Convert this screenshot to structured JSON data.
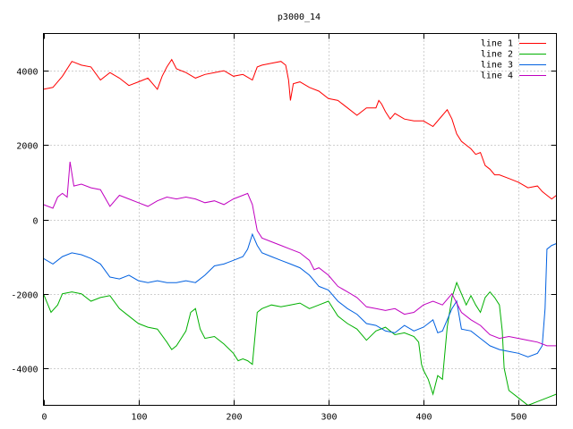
{
  "chart_data": {
    "type": "line",
    "title": "p3000_14",
    "xlabel": "",
    "ylabel": "",
    "xlim": [
      0,
      540
    ],
    "ylim": [
      -5000,
      5000
    ],
    "x_ticks": [
      0,
      100,
      200,
      300,
      400,
      500
    ],
    "y_ticks": [
      -4000,
      -2000,
      0,
      2000,
      4000
    ],
    "grid": true,
    "legend_position": "top-right",
    "series": [
      {
        "name": "line 1",
        "color": "#ff0000",
        "points": [
          [
            0,
            3500
          ],
          [
            10,
            3550
          ],
          [
            20,
            3850
          ],
          [
            30,
            4250
          ],
          [
            40,
            4150
          ],
          [
            50,
            4100
          ],
          [
            60,
            3750
          ],
          [
            70,
            3950
          ],
          [
            80,
            3800
          ],
          [
            90,
            3600
          ],
          [
            100,
            3700
          ],
          [
            110,
            3800
          ],
          [
            120,
            3500
          ],
          [
            125,
            3850
          ],
          [
            130,
            4100
          ],
          [
            135,
            4300
          ],
          [
            140,
            4050
          ],
          [
            150,
            3950
          ],
          [
            160,
            3800
          ],
          [
            170,
            3900
          ],
          [
            180,
            3950
          ],
          [
            190,
            4000
          ],
          [
            200,
            3850
          ],
          [
            210,
            3900
          ],
          [
            220,
            3750
          ],
          [
            225,
            4100
          ],
          [
            230,
            4150
          ],
          [
            240,
            4200
          ],
          [
            250,
            4250
          ],
          [
            255,
            4150
          ],
          [
            258,
            3750
          ],
          [
            260,
            3200
          ],
          [
            263,
            3650
          ],
          [
            270,
            3700
          ],
          [
            280,
            3550
          ],
          [
            290,
            3450
          ],
          [
            300,
            3250
          ],
          [
            310,
            3200
          ],
          [
            320,
            3000
          ],
          [
            330,
            2800
          ],
          [
            340,
            3000
          ],
          [
            350,
            3000
          ],
          [
            353,
            3200
          ],
          [
            356,
            3100
          ],
          [
            360,
            2900
          ],
          [
            365,
            2700
          ],
          [
            370,
            2850
          ],
          [
            380,
            2700
          ],
          [
            390,
            2650
          ],
          [
            400,
            2650
          ],
          [
            410,
            2500
          ],
          [
            420,
            2800
          ],
          [
            425,
            2950
          ],
          [
            430,
            2700
          ],
          [
            435,
            2300
          ],
          [
            440,
            2100
          ],
          [
            450,
            1900
          ],
          [
            455,
            1750
          ],
          [
            460,
            1800
          ],
          [
            465,
            1450
          ],
          [
            470,
            1350
          ],
          [
            475,
            1200
          ],
          [
            480,
            1200
          ],
          [
            490,
            1100
          ],
          [
            500,
            1000
          ],
          [
            510,
            850
          ],
          [
            520,
            900
          ],
          [
            525,
            750
          ],
          [
            530,
            650
          ],
          [
            535,
            550
          ],
          [
            540,
            650
          ]
        ]
      },
      {
        "name": "line 2",
        "color": "#00b000",
        "points": [
          [
            0,
            -2000
          ],
          [
            8,
            -2500
          ],
          [
            15,
            -2300
          ],
          [
            20,
            -2000
          ],
          [
            30,
            -1950
          ],
          [
            40,
            -2000
          ],
          [
            50,
            -2200
          ],
          [
            60,
            -2100
          ],
          [
            70,
            -2050
          ],
          [
            80,
            -2400
          ],
          [
            90,
            -2600
          ],
          [
            100,
            -2800
          ],
          [
            110,
            -2900
          ],
          [
            120,
            -2950
          ],
          [
            130,
            -3300
          ],
          [
            135,
            -3500
          ],
          [
            140,
            -3400
          ],
          [
            150,
            -3000
          ],
          [
            155,
            -2500
          ],
          [
            160,
            -2400
          ],
          [
            165,
            -2950
          ],
          [
            170,
            -3200
          ],
          [
            180,
            -3150
          ],
          [
            190,
            -3350
          ],
          [
            200,
            -3600
          ],
          [
            205,
            -3800
          ],
          [
            210,
            -3750
          ],
          [
            215,
            -3800
          ],
          [
            220,
            -3900
          ],
          [
            225,
            -2500
          ],
          [
            230,
            -2400
          ],
          [
            240,
            -2300
          ],
          [
            250,
            -2350
          ],
          [
            260,
            -2300
          ],
          [
            270,
            -2250
          ],
          [
            280,
            -2400
          ],
          [
            290,
            -2300
          ],
          [
            300,
            -2200
          ],
          [
            310,
            -2600
          ],
          [
            320,
            -2800
          ],
          [
            330,
            -2950
          ],
          [
            340,
            -3250
          ],
          [
            350,
            -3000
          ],
          [
            360,
            -2900
          ],
          [
            370,
            -3100
          ],
          [
            380,
            -3050
          ],
          [
            390,
            -3150
          ],
          [
            395,
            -3300
          ],
          [
            398,
            -3900
          ],
          [
            400,
            -4050
          ],
          [
            405,
            -4300
          ],
          [
            410,
            -4700
          ],
          [
            415,
            -4200
          ],
          [
            420,
            -4300
          ],
          [
            425,
            -2900
          ],
          [
            430,
            -2100
          ],
          [
            435,
            -1700
          ],
          [
            440,
            -2000
          ],
          [
            445,
            -2300
          ],
          [
            450,
            -2050
          ],
          [
            455,
            -2300
          ],
          [
            460,
            -2500
          ],
          [
            465,
            -2100
          ],
          [
            470,
            -1950
          ],
          [
            475,
            -2100
          ],
          [
            480,
            -2300
          ],
          [
            483,
            -3000
          ],
          [
            485,
            -4000
          ],
          [
            490,
            -4600
          ],
          [
            500,
            -4800
          ],
          [
            510,
            -5000
          ],
          [
            520,
            -4900
          ],
          [
            530,
            -4800
          ],
          [
            540,
            -4700
          ]
        ]
      },
      {
        "name": "line 3",
        "color": "#0060e0",
        "points": [
          [
            0,
            -1050
          ],
          [
            10,
            -1200
          ],
          [
            20,
            -1000
          ],
          [
            30,
            -900
          ],
          [
            40,
            -950
          ],
          [
            50,
            -1050
          ],
          [
            60,
            -1200
          ],
          [
            70,
            -1550
          ],
          [
            80,
            -1600
          ],
          [
            90,
            -1500
          ],
          [
            100,
            -1650
          ],
          [
            110,
            -1700
          ],
          [
            120,
            -1650
          ],
          [
            130,
            -1700
          ],
          [
            140,
            -1700
          ],
          [
            150,
            -1650
          ],
          [
            160,
            -1700
          ],
          [
            170,
            -1500
          ],
          [
            180,
            -1250
          ],
          [
            190,
            -1200
          ],
          [
            200,
            -1100
          ],
          [
            210,
            -1000
          ],
          [
            215,
            -800
          ],
          [
            220,
            -400
          ],
          [
            225,
            -700
          ],
          [
            230,
            -900
          ],
          [
            240,
            -1000
          ],
          [
            250,
            -1100
          ],
          [
            260,
            -1200
          ],
          [
            270,
            -1300
          ],
          [
            280,
            -1500
          ],
          [
            290,
            -1800
          ],
          [
            300,
            -1900
          ],
          [
            310,
            -2200
          ],
          [
            320,
            -2400
          ],
          [
            330,
            -2550
          ],
          [
            340,
            -2800
          ],
          [
            350,
            -2850
          ],
          [
            360,
            -3000
          ],
          [
            370,
            -3050
          ],
          [
            380,
            -2850
          ],
          [
            390,
            -3000
          ],
          [
            400,
            -2900
          ],
          [
            405,
            -2800
          ],
          [
            410,
            -2700
          ],
          [
            415,
            -3050
          ],
          [
            420,
            -3000
          ],
          [
            430,
            -2400
          ],
          [
            435,
            -2200
          ],
          [
            440,
            -2950
          ],
          [
            450,
            -3000
          ],
          [
            460,
            -3200
          ],
          [
            470,
            -3400
          ],
          [
            480,
            -3500
          ],
          [
            490,
            -3550
          ],
          [
            500,
            -3600
          ],
          [
            510,
            -3700
          ],
          [
            520,
            -3600
          ],
          [
            525,
            -3400
          ],
          [
            528,
            -2400
          ],
          [
            530,
            -800
          ],
          [
            535,
            -700
          ],
          [
            540,
            -650
          ]
        ]
      },
      {
        "name": "line 4",
        "color": "#c000c0",
        "points": [
          [
            0,
            400
          ],
          [
            10,
            300
          ],
          [
            15,
            600
          ],
          [
            20,
            700
          ],
          [
            25,
            600
          ],
          [
            28,
            1550
          ],
          [
            32,
            900
          ],
          [
            40,
            950
          ],
          [
            50,
            850
          ],
          [
            60,
            800
          ],
          [
            70,
            350
          ],
          [
            80,
            650
          ],
          [
            90,
            550
          ],
          [
            100,
            450
          ],
          [
            110,
            350
          ],
          [
            120,
            500
          ],
          [
            130,
            600
          ],
          [
            140,
            550
          ],
          [
            150,
            600
          ],
          [
            160,
            550
          ],
          [
            170,
            450
          ],
          [
            180,
            500
          ],
          [
            190,
            400
          ],
          [
            200,
            550
          ],
          [
            210,
            650
          ],
          [
            215,
            700
          ],
          [
            220,
            400
          ],
          [
            225,
            -300
          ],
          [
            230,
            -500
          ],
          [
            240,
            -600
          ],
          [
            250,
            -700
          ],
          [
            260,
            -800
          ],
          [
            270,
            -900
          ],
          [
            280,
            -1100
          ],
          [
            285,
            -1350
          ],
          [
            290,
            -1300
          ],
          [
            300,
            -1500
          ],
          [
            310,
            -1800
          ],
          [
            320,
            -1950
          ],
          [
            330,
            -2100
          ],
          [
            340,
            -2350
          ],
          [
            350,
            -2400
          ],
          [
            360,
            -2450
          ],
          [
            370,
            -2400
          ],
          [
            380,
            -2550
          ],
          [
            390,
            -2500
          ],
          [
            400,
            -2300
          ],
          [
            410,
            -2200
          ],
          [
            420,
            -2300
          ],
          [
            430,
            -2000
          ],
          [
            440,
            -2500
          ],
          [
            450,
            -2700
          ],
          [
            460,
            -2850
          ],
          [
            470,
            -3100
          ],
          [
            480,
            -3200
          ],
          [
            490,
            -3150
          ],
          [
            500,
            -3200
          ],
          [
            510,
            -3250
          ],
          [
            520,
            -3300
          ],
          [
            530,
            -3400
          ],
          [
            540,
            -3400
          ]
        ]
      }
    ]
  }
}
